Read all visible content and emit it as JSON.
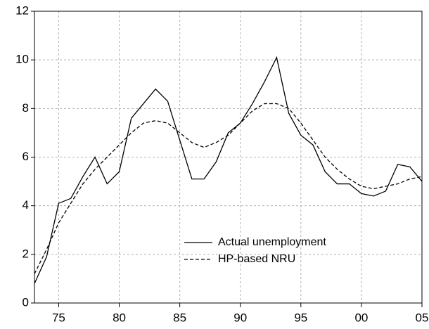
{
  "chart_data": {
    "type": "line",
    "x": [
      1973,
      1974,
      1975,
      1976,
      1977,
      1978,
      1979,
      1980,
      1981,
      1982,
      1983,
      1984,
      1985,
      1986,
      1987,
      1988,
      1989,
      1990,
      1991,
      1992,
      1993,
      1994,
      1995,
      1996,
      1997,
      1998,
      1999,
      2000,
      2001,
      2002,
      2003,
      2004,
      2005
    ],
    "series": [
      {
        "name": "Actual unemployment",
        "color": "#000000",
        "dash": "solid",
        "values": [
          0.8,
          1.9,
          4.1,
          4.3,
          5.2,
          6.0,
          4.9,
          5.4,
          7.6,
          8.2,
          8.8,
          8.3,
          6.7,
          5.1,
          5.1,
          5.8,
          7.0,
          7.4,
          8.2,
          9.1,
          10.1,
          7.8,
          6.9,
          6.5,
          5.4,
          4.9,
          4.9,
          4.5,
          4.4,
          4.6,
          5.7,
          5.6,
          5.0
        ]
      },
      {
        "name": "HP-based NRU",
        "color": "#000000",
        "dash": "dashed",
        "values": [
          1.2,
          2.2,
          3.3,
          4.1,
          4.9,
          5.5,
          6.0,
          6.5,
          7.0,
          7.4,
          7.5,
          7.4,
          7.0,
          6.6,
          6.4,
          6.6,
          6.9,
          7.4,
          7.9,
          8.2,
          8.2,
          8.0,
          7.4,
          6.7,
          6.0,
          5.5,
          5.1,
          4.8,
          4.7,
          4.8,
          4.9,
          5.1,
          5.2
        ]
      }
    ],
    "xlim": [
      1973,
      2005
    ],
    "xticks": [
      {
        "value": 1975,
        "label": "75"
      },
      {
        "value": 1980,
        "label": "80"
      },
      {
        "value": 1985,
        "label": "85"
      },
      {
        "value": 1990,
        "label": "90"
      },
      {
        "value": 1995,
        "label": "95"
      },
      {
        "value": 2000,
        "label": "00"
      },
      {
        "value": 2005,
        "label": "05"
      }
    ],
    "ylim": [
      0,
      12
    ],
    "yticks": [
      0,
      2,
      4,
      6,
      8,
      10,
      12
    ],
    "grid": true,
    "legend": "lower center"
  }
}
